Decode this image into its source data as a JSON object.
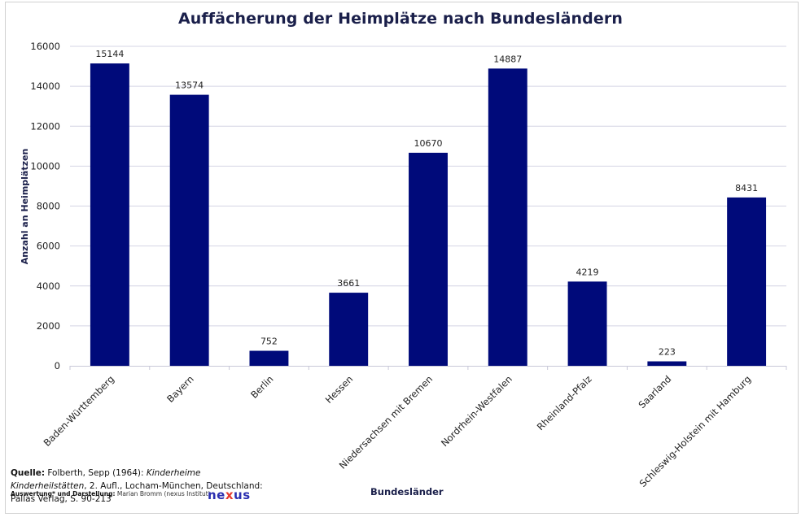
{
  "chart_data": {
    "type": "bar",
    "title": "Auffächerung der Heimplätze nach Bundesländern",
    "xlabel": "Bundesländer",
    "ylabel": "Anzahl an Heimplätzen",
    "ylim": [
      0,
      16000
    ],
    "yticks": [
      0,
      2000,
      4000,
      6000,
      8000,
      10000,
      12000,
      14000,
      16000
    ],
    "grid": true,
    "legend": "none",
    "bar_color": "#000a7a",
    "categories": [
      "Baden-Württemberg",
      "Bayern",
      "Berlin",
      "Hessen",
      "Niedersachsen mit Bremen",
      "Nordrhein-Westfalen",
      "Rheinland-Pfalz",
      "Saarland",
      "Schleswig-Holstein mit Hamburg"
    ],
    "values": [
      15144,
      13574,
      752,
      3661,
      10670,
      14887,
      4219,
      223,
      8431
    ],
    "data_labels": [
      "15144",
      "13574",
      "752",
      "3661",
      "10670",
      "14887",
      "4219",
      "223",
      "8431"
    ]
  },
  "source": {
    "label": "Quelle:",
    "text_before_italic": " Folberth, Sepp (1964): ",
    "italic": "Kinderheime Kinderheilstätten",
    "text_after_italic": ", 2. Aufl., Locham-München, Deutschland: Pallas Verlag, S. 90-213"
  },
  "credit": {
    "label": "Auswertung* und Darstellung:",
    "text": " Marian Bromm (nexus Institut)"
  },
  "logo": {
    "part1": "ne",
    "part2": "x",
    "part3": "us"
  }
}
